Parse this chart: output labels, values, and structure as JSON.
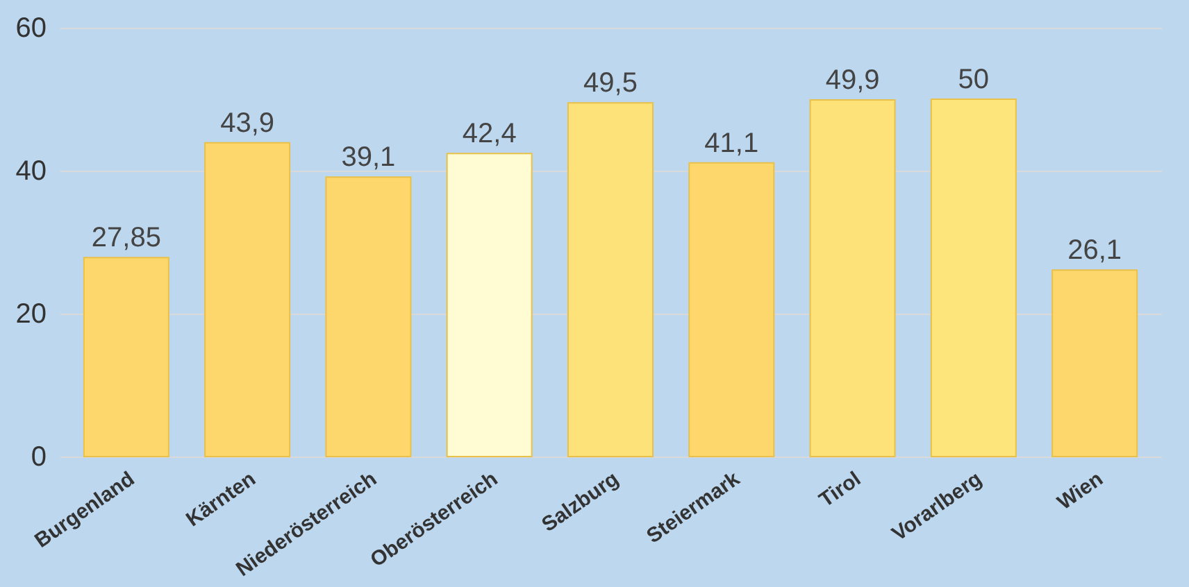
{
  "chart_data": {
    "type": "bar",
    "categories": [
      "Burgenland",
      "Kärnten",
      "Niederösterreich",
      "Oberösterreich",
      "Salzburg",
      "Steiermark",
      "Tirol",
      "Vorarlberg",
      "Wien"
    ],
    "values": [
      27.85,
      43.9,
      39.1,
      42.4,
      49.5,
      41.1,
      49.9,
      50,
      26.1
    ],
    "value_labels": [
      "27,85",
      "43,9",
      "39,1",
      "42,4",
      "49,5",
      "41,1",
      "49,9",
      "50",
      "26,1"
    ],
    "colors": [
      "#fdd76b",
      "#fdd76b",
      "#fdd76b",
      "#fffbd2",
      "#fde27a",
      "#fdd76b",
      "#fde27a",
      "#fde57c",
      "#fdd76b"
    ],
    "ylim": [
      0,
      60
    ],
    "yticks": [
      0,
      20,
      40,
      60
    ],
    "grid": "y"
  }
}
